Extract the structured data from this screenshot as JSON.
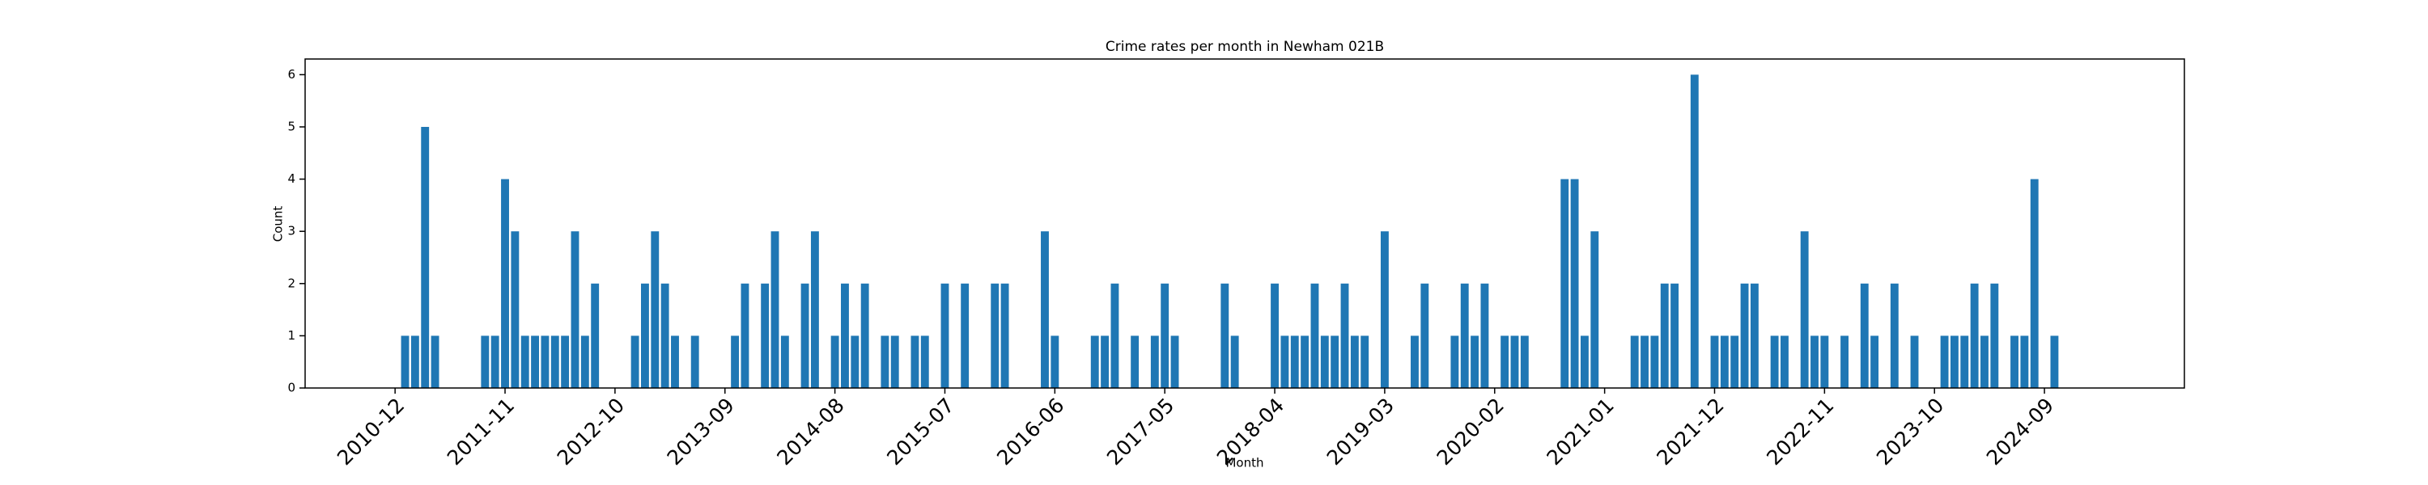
{
  "chart_data": {
    "type": "bar",
    "title": "Crime rates per month in Newham 021B",
    "xlabel": "Month",
    "ylabel": "Count",
    "color": "#1f77b4",
    "x": [
      "2011-01",
      "2011-02",
      "2011-03",
      "2011-04",
      "2011-09",
      "2011-10",
      "2011-11",
      "2011-12",
      "2012-01",
      "2012-02",
      "2012-03",
      "2012-04",
      "2012-05",
      "2012-06",
      "2012-07",
      "2012-08",
      "2012-12",
      "2013-01",
      "2013-02",
      "2013-03",
      "2013-04",
      "2013-06",
      "2013-10",
      "2013-11",
      "2014-01",
      "2014-02",
      "2014-03",
      "2014-05",
      "2014-06",
      "2014-08",
      "2014-09",
      "2014-10",
      "2014-11",
      "2015-01",
      "2015-02",
      "2015-04",
      "2015-05",
      "2015-07",
      "2015-09",
      "2015-12",
      "2016-01",
      "2016-05",
      "2016-06",
      "2016-10",
      "2016-11",
      "2016-12",
      "2017-02",
      "2017-04",
      "2017-05",
      "2017-06",
      "2017-11",
      "2017-12",
      "2018-04",
      "2018-05",
      "2018-06",
      "2018-07",
      "2018-08",
      "2018-09",
      "2018-10",
      "2018-11",
      "2018-12",
      "2019-01",
      "2019-03",
      "2019-06",
      "2019-07",
      "2019-10",
      "2019-11",
      "2019-12",
      "2020-01",
      "2020-03",
      "2020-04",
      "2020-05",
      "2020-09",
      "2020-10",
      "2020-11",
      "2020-12",
      "2021-04",
      "2021-05",
      "2021-06",
      "2021-07",
      "2021-08",
      "2021-10",
      "2021-12",
      "2022-01",
      "2022-02",
      "2022-03",
      "2022-04",
      "2022-06",
      "2022-07",
      "2022-09",
      "2022-10",
      "2022-11",
      "2023-01",
      "2023-03",
      "2023-04",
      "2023-06",
      "2023-08",
      "2023-11",
      "2023-12",
      "2024-01",
      "2024-02",
      "2024-03",
      "2024-04",
      "2024-06",
      "2024-07",
      "2024-08",
      "2024-10"
    ],
    "values": [
      1,
      1,
      5,
      1,
      1,
      1,
      4,
      3,
      1,
      1,
      1,
      1,
      1,
      3,
      1,
      2,
      1,
      2,
      3,
      2,
      1,
      1,
      1,
      2,
      2,
      3,
      1,
      2,
      3,
      1,
      2,
      1,
      2,
      1,
      1,
      1,
      1,
      2,
      2,
      2,
      2,
      3,
      1,
      1,
      1,
      2,
      1,
      1,
      2,
      1,
      2,
      1,
      2,
      1,
      1,
      1,
      2,
      1,
      1,
      2,
      1,
      1,
      3,
      1,
      2,
      1,
      2,
      1,
      2,
      1,
      1,
      1,
      4,
      4,
      1,
      3,
      1,
      1,
      1,
      2,
      2,
      6,
      1,
      1,
      1,
      2,
      2,
      1,
      1,
      3,
      1,
      1,
      1,
      2,
      1,
      2,
      1,
      1,
      1,
      1,
      2,
      1,
      2,
      1,
      1,
      4,
      1
    ],
    "xlim": [
      "2010-03",
      "2025-11"
    ],
    "xticks": [
      "2010-12",
      "2011-11",
      "2012-10",
      "2013-09",
      "2014-08",
      "2015-07",
      "2016-06",
      "2017-05",
      "2018-04",
      "2019-03",
      "2020-02",
      "2021-01",
      "2021-12",
      "2022-11",
      "2023-10",
      "2024-09"
    ],
    "ylim": [
      0,
      6.3
    ],
    "yticks": [
      0,
      1,
      2,
      3,
      4,
      5,
      6
    ],
    "grid": false
  }
}
